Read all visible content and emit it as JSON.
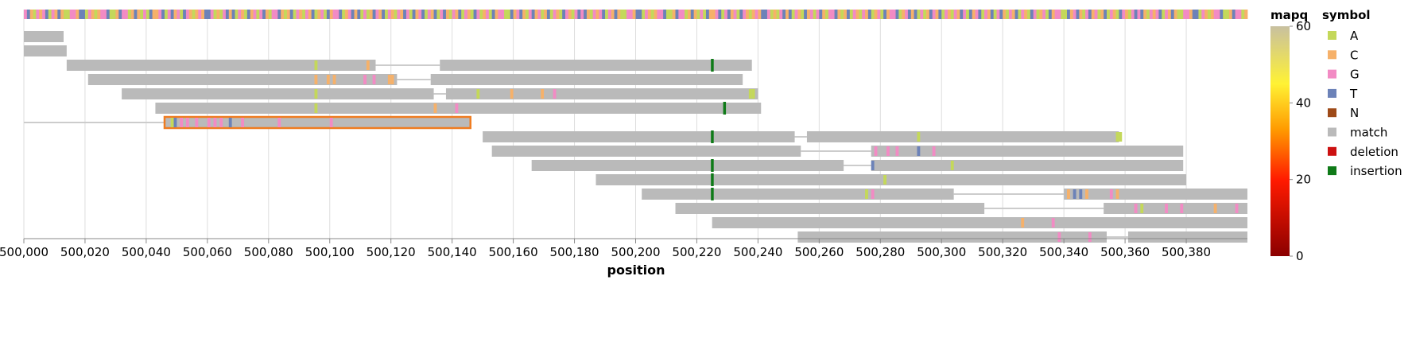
{
  "chart_data": {
    "type": "alignment-track",
    "title": "",
    "xlabel": "position",
    "ylabel": "",
    "xlim": [
      500000,
      500400
    ],
    "x_ticks": [
      500000,
      500020,
      500040,
      500060,
      500080,
      500100,
      500120,
      500140,
      500160,
      500180,
      500200,
      500220,
      500240,
      500260,
      500280,
      500300,
      500320,
      500340,
      500360,
      500380
    ],
    "x_tick_labels": [
      "500,000",
      "500,020",
      "500,040",
      "500,060",
      "500,080",
      "500,100",
      "500,120",
      "500,140",
      "500,160",
      "500,180",
      "500,200",
      "500,220",
      "500,240",
      "500,260",
      "500,280",
      "500,300",
      "500,320",
      "500,340",
      "500,360",
      "500,380"
    ],
    "grid": true,
    "legend_position": "right",
    "colors": {
      "match": "#bababa",
      "A": "#c4d85a",
      "C": "#f6b16a",
      "G": "#f28bc4",
      "T": "#6c82b8",
      "N": "#9e4a18",
      "deletion": "#cc1111",
      "insertion": "#0f7a18",
      "selected_outline": "#f07c20",
      "intron_line": "#cccccc"
    },
    "legend_mapq": {
      "title": "mapq",
      "ticks": [
        0,
        20,
        40,
        60
      ]
    },
    "legend_symbol": {
      "title": "symbol",
      "items": [
        "A",
        "C",
        "G",
        "T",
        "N",
        "match",
        "deletion",
        "insertion"
      ]
    },
    "reference_pattern": "GTCAGCGTAGCTCAAGGCTTAGCACGGTAACTGGACTCAGATCCGTAGTCGATGCACGCTTGACAGTCTAGCATCGAGTCAGGTCACTAGCAGCTACGATCGGTACGTCTAGACTGCTAGCAGCTGATCGTAGCTAGTCAGCTAGCATGACGATCGGAATCGTCAGTCGACTAGCATGCAGT",
    "reads": [
      {
        "row": 0,
        "segments": [
          [
            500000,
            500013
          ]
        ],
        "mismatches": [],
        "insertions": []
      },
      {
        "row": 1,
        "segments": [
          [
            500000,
            500014
          ]
        ],
        "mismatches": [],
        "insertions": []
      },
      {
        "row": 2,
        "segments": [
          [
            500014,
            500115
          ],
          [
            500136,
            500238
          ]
        ],
        "mismatches": [
          [
            500095,
            "A"
          ],
          [
            500112,
            "C"
          ]
        ],
        "insertions": [
          500225
        ]
      },
      {
        "row": 3,
        "segments": [
          [
            500021,
            500122
          ],
          [
            500133,
            500235
          ]
        ],
        "mismatches": [
          [
            500095,
            "C"
          ],
          [
            500099,
            "C"
          ],
          [
            500101,
            "C"
          ],
          [
            500111,
            "G"
          ],
          [
            500114,
            "G"
          ],
          [
            500119,
            "C"
          ],
          [
            500120,
            "C"
          ]
        ],
        "insertions": []
      },
      {
        "row": 4,
        "segments": [
          [
            500032,
            500134
          ],
          [
            500138,
            500240
          ]
        ],
        "mismatches": [
          [
            500095,
            "A"
          ],
          [
            500148,
            "A"
          ],
          [
            500159,
            "C"
          ],
          [
            500169,
            "C"
          ],
          [
            500173,
            "G"
          ],
          [
            500237,
            "A"
          ],
          [
            500238,
            "A"
          ]
        ],
        "insertions": []
      },
      {
        "row": 5,
        "segments": [
          [
            500043,
            500241
          ]
        ],
        "mismatches": [
          [
            500095,
            "A"
          ],
          [
            500134,
            "C"
          ],
          [
            500141,
            "G"
          ]
        ],
        "insertions": [
          500229
        ]
      },
      {
        "row": 6,
        "segments": [
          [
            500046,
            500146
          ]
        ],
        "selected": true,
        "connector_from": 500000,
        "mismatches": [
          [
            500048,
            "A"
          ],
          [
            500049,
            "T"
          ],
          [
            500051,
            "G"
          ],
          [
            500053,
            "G"
          ],
          [
            500056,
            "G"
          ],
          [
            500060,
            "G"
          ],
          [
            500062,
            "G"
          ],
          [
            500064,
            "G"
          ],
          [
            500067,
            "T"
          ],
          [
            500071,
            "G"
          ],
          [
            500083,
            "G"
          ],
          [
            500100,
            "G"
          ]
        ],
        "insertions": []
      },
      {
        "row": 7,
        "segments": [
          [
            500150,
            500252
          ],
          [
            500256,
            500358
          ]
        ],
        "mismatches": [
          [
            500292,
            "A"
          ],
          [
            500357,
            "A"
          ],
          [
            500358,
            "A"
          ]
        ],
        "insertions": [
          500225
        ]
      },
      {
        "row": 8,
        "segments": [
          [
            500153,
            500254
          ],
          [
            500277,
            500379
          ]
        ],
        "mismatches": [
          [
            500278,
            "G"
          ],
          [
            500282,
            "G"
          ],
          [
            500285,
            "G"
          ],
          [
            500292,
            "T"
          ],
          [
            500297,
            "G"
          ]
        ],
        "insertions": []
      },
      {
        "row": 9,
        "segments": [
          [
            500166,
            500268
          ],
          [
            500277,
            500379
          ]
        ],
        "mismatches": [
          [
            500277,
            "T"
          ],
          [
            500303,
            "A"
          ]
        ],
        "insertions": [
          500225
        ]
      },
      {
        "row": 10,
        "segments": [
          [
            500187,
            500380
          ]
        ],
        "mismatches": [
          [
            500281,
            "A"
          ]
        ],
        "insertions": [
          500225
        ]
      },
      {
        "row": 11,
        "segments": [
          [
            500202,
            500304
          ],
          [
            500340,
            500400
          ]
        ],
        "mismatches": [
          [
            500275,
            "A"
          ],
          [
            500277,
            "G"
          ],
          [
            500341,
            "C"
          ],
          [
            500343,
            "T"
          ],
          [
            500345,
            "T"
          ],
          [
            500347,
            "C"
          ],
          [
            500355,
            "G"
          ],
          [
            500357,
            "C"
          ]
        ],
        "insertions": [
          500225
        ]
      },
      {
        "row": 12,
        "segments": [
          [
            500213,
            500314
          ],
          [
            500353,
            500400
          ]
        ],
        "mismatches": [
          [
            500363,
            "G"
          ],
          [
            500365,
            "A"
          ],
          [
            500373,
            "G"
          ],
          [
            500378,
            "G"
          ],
          [
            500389,
            "C"
          ],
          [
            500396,
            "G"
          ]
        ],
        "insertions": []
      },
      {
        "row": 13,
        "segments": [
          [
            500225,
            500400
          ]
        ],
        "mismatches": [
          [
            500326,
            "C"
          ],
          [
            500336,
            "G"
          ]
        ],
        "insertions": []
      },
      {
        "row": 14,
        "segments": [
          [
            500253,
            500354
          ],
          [
            500361,
            500400
          ]
        ],
        "mismatches": [
          [
            500338,
            "G"
          ],
          [
            500348,
            "G"
          ]
        ],
        "insertions": []
      }
    ]
  }
}
